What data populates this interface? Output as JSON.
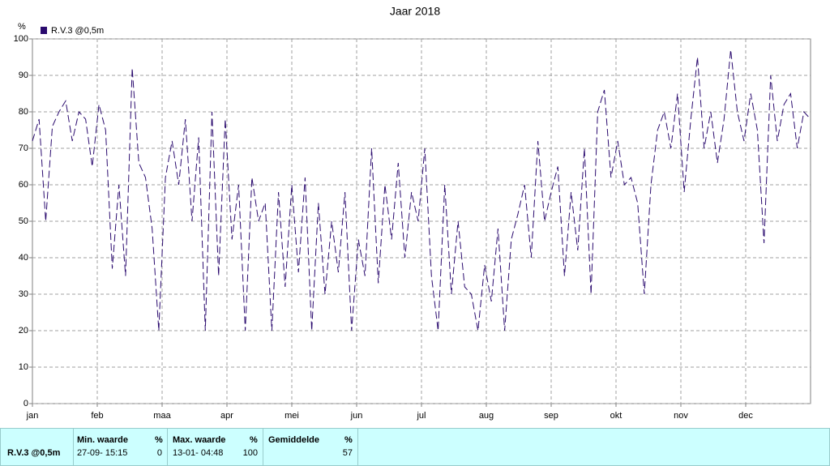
{
  "chart_data": {
    "type": "line",
    "title": "Jaar 2018",
    "y_unit_label": "%",
    "xticks": [
      "jan",
      "feb",
      "maa",
      "apr",
      "mei",
      "jun",
      "jul",
      "aug",
      "sep",
      "okt",
      "nov",
      "dec"
    ],
    "series": [
      {
        "name": "R.V.3 @0,5m",
        "color": "#2a0a6e",
        "values": [
          72,
          78,
          50,
          76,
          80,
          83,
          72,
          80,
          78,
          65,
          82,
          75,
          37,
          60,
          35,
          92,
          66,
          62,
          48,
          20,
          62,
          72,
          60,
          78,
          50,
          73,
          20,
          80,
          35,
          78,
          45,
          60,
          20,
          62,
          50,
          55,
          20,
          58,
          32,
          60,
          36,
          62,
          20,
          55,
          30,
          50,
          36,
          58,
          20,
          45,
          35,
          70,
          33,
          60,
          45,
          66,
          40,
          58,
          50,
          70,
          35,
          20,
          60,
          30,
          50,
          32,
          30,
          20,
          38,
          28,
          48,
          20,
          45,
          52,
          60,
          40,
          72,
          50,
          58,
          65,
          35,
          58,
          42,
          70,
          30,
          80,
          86,
          62,
          72,
          60,
          62,
          55,
          30,
          60,
          75,
          80,
          70,
          85,
          58,
          78,
          95,
          70,
          80,
          66,
          78,
          97,
          80,
          72,
          85,
          75,
          44,
          90,
          72,
          82,
          85,
          70,
          80,
          78
        ]
      }
    ],
    "ylim": [
      0,
      100
    ],
    "yticks": [
      0,
      10,
      20,
      30,
      40,
      50,
      60,
      70,
      80,
      90,
      100
    ],
    "grid": true
  },
  "stats": {
    "series_label": "R.V.3 @0,5m",
    "min": {
      "header": "Min. waarde",
      "unit": "%",
      "time": "27-09- 15:15",
      "value": "0"
    },
    "max": {
      "header": "Max. waarde",
      "unit": "%",
      "time": "13-01- 04:48",
      "value": "100"
    },
    "avg": {
      "header": "Gemiddelde",
      "unit": "%",
      "value": "57"
    }
  }
}
